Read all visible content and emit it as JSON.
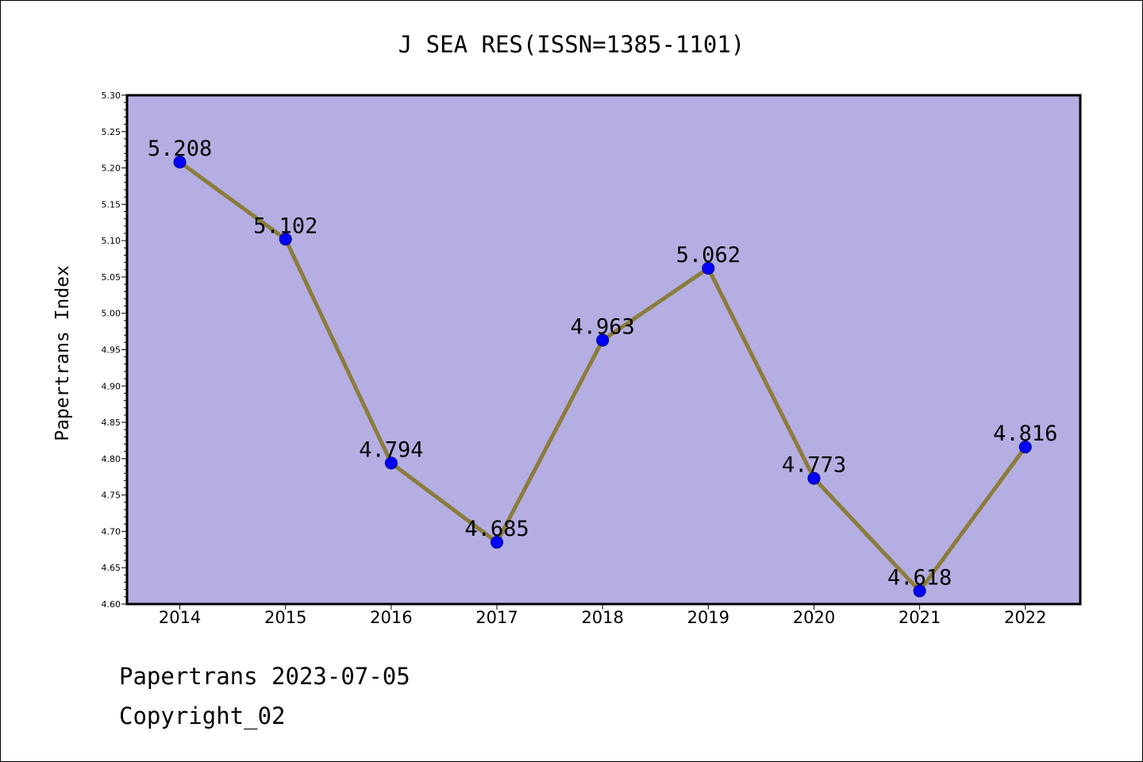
{
  "chart_data": {
    "type": "line",
    "title": "J SEA RES(ISSN=1385-1101)",
    "xlabel": "",
    "ylabel": "Papertrans Index",
    "x": [
      "2014",
      "2015",
      "2016",
      "2017",
      "2018",
      "2019",
      "2020",
      "2021",
      "2022"
    ],
    "series": [
      {
        "values": [
          5.208,
          5.102,
          4.794,
          4.685,
          4.963,
          5.062,
          4.773,
          4.618,
          4.816
        ],
        "data_labels": [
          "5.208",
          "5.102",
          "4.794",
          "4.685",
          "4.963",
          "5.062",
          "4.773",
          "4.618",
          "4.816"
        ]
      }
    ],
    "ylim": [
      4.6,
      5.3
    ],
    "yticks": [
      "4.60",
      "4.65",
      "4.70",
      "4.75",
      "4.80",
      "4.85",
      "4.90",
      "4.95",
      "5.00",
      "5.05",
      "5.10",
      "5.15",
      "5.20",
      "5.25",
      "5.30"
    ],
    "grid": false,
    "legend": "none",
    "colors": {
      "plot_background": "#b4aee2",
      "line": "#8c7c3c",
      "marker": "#0000ff",
      "marker_edge": "#000080",
      "axis": "#000000"
    }
  },
  "footer": {
    "line1": "Papertrans 2023-07-05",
    "line2": "Copyright_02"
  }
}
